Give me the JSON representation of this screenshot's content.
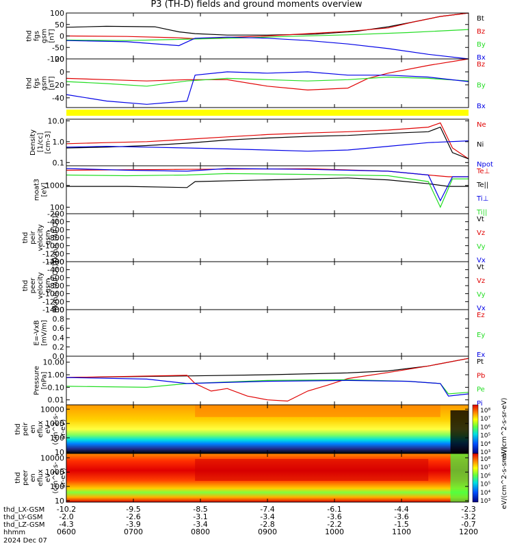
{
  "title": "P3 (TH-D) fields and ground moments overview",
  "colors": {
    "black": "#000000",
    "red": "#e00000",
    "green": "#22dd22",
    "blue": "#0000e6",
    "yellow": "#ffff00"
  },
  "chart_data": [
    {
      "type": "line",
      "panel": "fgs_gsm_full",
      "ylabel": [
        "thd",
        "fgs",
        "gsm",
        "[nT]"
      ],
      "ylim": [
        -100,
        100
      ],
      "yticks": [
        "100",
        "50",
        "0",
        "-50",
        "-100"
      ],
      "legend": [
        "Bt",
        "Bz",
        "By",
        "Bx"
      ],
      "series": [
        {
          "name": "Bt",
          "color": "black",
          "x": [
            0,
            0.1,
            0.22,
            0.28,
            0.32,
            0.4,
            0.5,
            0.62,
            0.72,
            0.8,
            0.86,
            0.93,
            1.0
          ],
          "y": [
            38,
            42,
            40,
            18,
            10,
            4,
            4,
            8,
            20,
            40,
            60,
            85,
            110
          ]
        },
        {
          "name": "Bz",
          "color": "red",
          "x": [
            0,
            0.15,
            0.28,
            0.32,
            0.4,
            0.5,
            0.6,
            0.7,
            0.8,
            0.86,
            0.93,
            1.0
          ],
          "y": [
            0,
            -2,
            -8,
            -12,
            -6,
            0,
            10,
            20,
            35,
            60,
            85,
            110
          ]
        },
        {
          "name": "By",
          "color": "green",
          "x": [
            0,
            0.15,
            0.28,
            0.35,
            0.45,
            0.55,
            0.7,
            0.85,
            1.0
          ],
          "y": [
            -18,
            -20,
            -15,
            -12,
            -8,
            -2,
            5,
            15,
            28
          ]
        },
        {
          "name": "Bx",
          "color": "blue",
          "x": [
            0,
            0.15,
            0.28,
            0.32,
            0.4,
            0.5,
            0.6,
            0.7,
            0.8,
            0.9,
            1.0
          ],
          "y": [
            -20,
            -25,
            -42,
            -10,
            -5,
            -10,
            -20,
            -35,
            -55,
            -80,
            -105
          ]
        }
      ]
    },
    {
      "type": "line",
      "panel": "fgs_gsm_zoom",
      "ylabel": [
        "thd",
        "fgs",
        "gsm",
        "[nT]"
      ],
      "ylim": [
        -55,
        20
      ],
      "yticks": [
        "20",
        "0",
        "-20",
        "-40"
      ],
      "legend": [
        "Bz",
        "By",
        "Bx"
      ],
      "series": [
        {
          "name": "Bz",
          "color": "red",
          "x": [
            0,
            0.1,
            0.2,
            0.3,
            0.4,
            0.5,
            0.6,
            0.7,
            0.75,
            0.8,
            0.9,
            1.0
          ],
          "y": [
            -10,
            -12,
            -14,
            -12,
            -12,
            -22,
            -28,
            -25,
            -10,
            -2,
            10,
            22
          ]
        },
        {
          "name": "By",
          "color": "green",
          "x": [
            0,
            0.1,
            0.2,
            0.3,
            0.4,
            0.5,
            0.6,
            0.7,
            0.8,
            0.9,
            1.0
          ],
          "y": [
            -15,
            -18,
            -22,
            -14,
            -10,
            -12,
            -14,
            -12,
            -8,
            -10,
            -14
          ]
        },
        {
          "name": "Bx",
          "color": "blue",
          "x": [
            0,
            0.1,
            0.2,
            0.3,
            0.32,
            0.4,
            0.5,
            0.6,
            0.7,
            0.8,
            0.9,
            1.0
          ],
          "y": [
            -35,
            -45,
            -50,
            -45,
            -5,
            0,
            -2,
            0,
            -5,
            -5,
            -8,
            -15
          ]
        }
      ]
    },
    {
      "type": "line",
      "panel": "density",
      "yscale": "log",
      "ylabel": [
        "Density",
        "[1/cc]",
        "[cm-3]"
      ],
      "ylim": [
        0.07,
        12
      ],
      "yticks": [
        "10.0",
        "1.0",
        "0.1"
      ],
      "legend": [
        "Ne",
        "Ni",
        "Npot"
      ],
      "series": [
        {
          "name": "Ne",
          "color": "red",
          "x": [
            0,
            0.1,
            0.2,
            0.3,
            0.4,
            0.5,
            0.6,
            0.7,
            0.8,
            0.9,
            0.93,
            0.96,
            1.0
          ],
          "y": [
            0.8,
            0.9,
            1.0,
            1.3,
            1.7,
            2.2,
            2.6,
            3.0,
            3.6,
            5,
            8,
            0.5,
            0.15
          ]
        },
        {
          "name": "Ni",
          "color": "black",
          "x": [
            0,
            0.1,
            0.2,
            0.3,
            0.4,
            0.5,
            0.6,
            0.7,
            0.8,
            0.9,
            0.93,
            0.96,
            1.0
          ],
          "y": [
            0.5,
            0.55,
            0.65,
            0.85,
            1.2,
            1.5,
            1.8,
            2.0,
            2.5,
            3.0,
            5,
            0.3,
            0.15
          ]
        },
        {
          "name": "Npot",
          "color": "blue",
          "x": [
            0,
            0.1,
            0.2,
            0.3,
            0.4,
            0.5,
            0.6,
            0.7,
            0.8,
            0.9,
            1.0
          ],
          "y": [
            0.55,
            0.6,
            0.55,
            0.5,
            0.45,
            0.4,
            0.35,
            0.4,
            0.6,
            0.9,
            1.1
          ]
        }
      ]
    },
    {
      "type": "line",
      "panel": "temperature",
      "yscale": "log",
      "ylabel": [
        "moat3",
        "[eV]"
      ],
      "ylim": [
        50,
        8000
      ],
      "yticks": [
        "1000",
        "100"
      ],
      "legend": [
        "Te⊥",
        "Te||",
        "Ti⊥",
        "Ti||"
      ],
      "series": [
        {
          "name": "Te⊥",
          "color": "red",
          "x": [
            0,
            0.3,
            0.6,
            0.8,
            0.9,
            0.95,
            1.0
          ],
          "y": [
            5000,
            5500,
            5800,
            4500,
            3000,
            2500,
            2500
          ]
        },
        {
          "name": "Te||",
          "color": "black",
          "x": [
            0,
            0.15,
            0.3,
            0.32,
            0.5,
            0.7,
            0.8,
            0.9,
            0.95,
            1.0
          ],
          "y": [
            900,
            900,
            800,
            1500,
            1800,
            2200,
            1800,
            1200,
            900,
            900
          ]
        },
        {
          "name": "Ti⊥",
          "color": "blue",
          "x": [
            0,
            0.15,
            0.3,
            0.4,
            0.6,
            0.8,
            0.9,
            0.93,
            0.96,
            1.0
          ],
          "y": [
            6000,
            5000,
            4500,
            6000,
            5500,
            4500,
            3000,
            200,
            2500,
            2500
          ]
        },
        {
          "name": "Ti||",
          "color": "green",
          "x": [
            0,
            0.15,
            0.3,
            0.4,
            0.6,
            0.8,
            0.9,
            0.93,
            0.96,
            1.0
          ],
          "y": [
            3000,
            2800,
            3000,
            3500,
            3200,
            2800,
            1500,
            100,
            2000,
            2000
          ]
        }
      ]
    },
    {
      "type": "line",
      "panel": "peir_velocity",
      "ylabel": [
        "thd",
        "peir",
        "velocity",
        "gsm",
        "[km/s (All Qs)]"
      ],
      "ylim": [
        -1400,
        -200
      ],
      "yticks": [
        "-200",
        "-400",
        "-600",
        "-800",
        "-1000",
        "-1200",
        "-1400"
      ],
      "legend": [
        "Vt",
        "Vz",
        "Vy",
        "Vx"
      ],
      "series": []
    },
    {
      "type": "line",
      "panel": "peer_velocity",
      "ylabel": [
        "thd",
        "peer",
        "velocity",
        "gsm",
        "[km/s (All Qs)]"
      ],
      "ylim": [
        -1400,
        -200
      ],
      "yticks": [
        "-200",
        "-400",
        "-600",
        "-800",
        "-1000",
        "-1200",
        "-1400"
      ],
      "legend": [
        "Vt",
        "Vz",
        "Vy",
        "Vx"
      ],
      "series": []
    },
    {
      "type": "line",
      "panel": "efield",
      "ylabel": [
        "E=-VxB",
        "[mV/m]"
      ],
      "ylim": [
        0,
        1
      ],
      "yticks": [
        "1.0",
        "0.8",
        "0.6",
        "0.4",
        "0.2",
        "0.0"
      ],
      "legend": [
        "Ez",
        "Ey",
        "Ex"
      ],
      "series": []
    },
    {
      "type": "line",
      "panel": "pressure",
      "yscale": "log",
      "ylabel": [
        "Pressure",
        "[nPa]"
      ],
      "ylim": [
        0.004,
        30
      ],
      "yticks": [
        "10.00",
        "1.00",
        "0.10",
        "0.01"
      ],
      "legend": [
        "Pt",
        "Pb",
        "Pe",
        "Pi"
      ],
      "series": [
        {
          "name": "Pt",
          "color": "black",
          "x": [
            0,
            0.3,
            0.5,
            0.7,
            0.8,
            0.9,
            1.0
          ],
          "y": [
            0.6,
            0.8,
            1.0,
            1.4,
            2.0,
            5,
            20
          ]
        },
        {
          "name": "Pb",
          "color": "red",
          "x": [
            0,
            0.3,
            0.32,
            0.36,
            0.4,
            0.45,
            0.5,
            0.55,
            0.6,
            0.65,
            0.7,
            0.8,
            0.9,
            1.0
          ],
          "y": [
            0.6,
            0.9,
            0.2,
            0.05,
            0.08,
            0.02,
            0.01,
            0.008,
            0.05,
            0.15,
            0.5,
            1.5,
            5,
            20
          ]
        },
        {
          "name": "Pe",
          "color": "green",
          "x": [
            0,
            0.2,
            0.3,
            0.5,
            0.7,
            0.85,
            0.93,
            0.95,
            1.0
          ],
          "y": [
            0.12,
            0.1,
            0.2,
            0.35,
            0.4,
            0.3,
            0.2,
            0.03,
            0.04
          ]
        },
        {
          "name": "Pi",
          "color": "blue",
          "x": [
            0,
            0.2,
            0.3,
            0.5,
            0.7,
            0.85,
            0.93,
            0.95,
            1.0
          ],
          "y": [
            0.6,
            0.45,
            0.2,
            0.3,
            0.35,
            0.3,
            0.2,
            0.02,
            0.03
          ]
        }
      ]
    },
    {
      "type": "heatmap",
      "panel": "peir_eflux",
      "yscale": "log",
      "ylabel": [
        "thd",
        "peir",
        "en",
        "eflux",
        "eV",
        "(cm^2-s-",
        "sr-eV)"
      ],
      "ylim": [
        8,
        20000
      ],
      "yticks": [
        "10000",
        "1000",
        "100",
        "10"
      ],
      "colorbar": {
        "label": "eV/(cm^2-s-sr-eV)",
        "ticks": [
          "10⁸",
          "10⁷",
          "10⁶",
          "10⁵",
          "10⁴",
          "10³"
        ]
      }
    },
    {
      "type": "heatmap",
      "panel": "peer_eflux",
      "yscale": "log",
      "ylabel": [
        "thd",
        "peer",
        "en",
        "eflux",
        "eV",
        "(cm^2-s-",
        "sr-eV)"
      ],
      "ylim": [
        8,
        20000
      ],
      "yticks": [
        "10000",
        "1000",
        "100",
        "10"
      ],
      "colorbar": {
        "label": "eV/(cm^2-s-sr-eV)",
        "ticks": [
          "10⁸",
          "10⁷",
          "10⁶",
          "10⁵",
          "10⁴",
          "10³"
        ]
      }
    }
  ],
  "xaxis": {
    "rows": [
      {
        "label": "thd_LX-GSM",
        "values": [
          "-10.2",
          "-9.5",
          "-8.5",
          "-7.4",
          "-6.1",
          "-4.4",
          "-2.3"
        ]
      },
      {
        "label": "thd_LY-GSM",
        "values": [
          "-2.0",
          "-2.6",
          "-3.1",
          "-3.4",
          "-3.6",
          "-3.6",
          "-3.2"
        ]
      },
      {
        "label": "thd_LZ-GSM",
        "values": [
          "-4.3",
          "-3.9",
          "-3.4",
          "-2.8",
          "-2.2",
          "-1.5",
          "-0.7"
        ]
      },
      {
        "label": "hhmm",
        "values": [
          "0600",
          "0700",
          "0800",
          "0900",
          "1000",
          "1100",
          "1200"
        ]
      }
    ],
    "date": "2024 Dec 07"
  }
}
